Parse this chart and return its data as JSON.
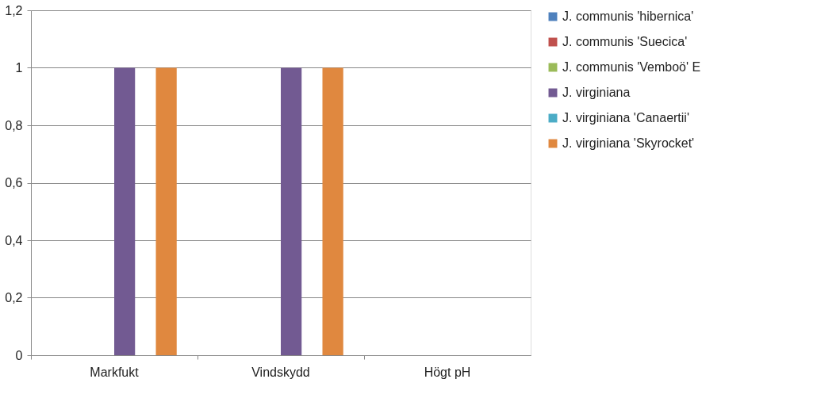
{
  "chart_data": {
    "type": "bar",
    "categories": [
      "Markfukt",
      "Vindskydd",
      "Högt pH"
    ],
    "series": [
      {
        "name": "J. communis 'hibernica'",
        "color": "#4f81bd",
        "values": [
          0,
          0,
          0
        ]
      },
      {
        "name": "J. communis 'Suecica'",
        "color": "#c0504d",
        "values": [
          0,
          0,
          0
        ]
      },
      {
        "name": "J. communis 'Vemboö' E",
        "color": "#9bbb59",
        "values": [
          0,
          0,
          0
        ]
      },
      {
        "name": "J. virginiana",
        "color": "#725a92",
        "values": [
          1,
          1,
          0
        ]
      },
      {
        "name": "J. virginiana 'Canaertii'",
        "color": "#4bacc6",
        "values": [
          0,
          0,
          0
        ]
      },
      {
        "name": "J. virginiana 'Skyrocket'",
        "color": "#e0883f",
        "values": [
          1,
          1,
          0
        ]
      }
    ],
    "ylim": [
      0,
      1.2
    ],
    "yticks": [
      0,
      {
        "value": 0.2,
        "label": "0,2"
      },
      {
        "value": 0.4,
        "label": "0,4"
      },
      {
        "value": 0.6,
        "label": "0,6"
      },
      {
        "value": 0.8,
        "label": "0,8"
      },
      1,
      {
        "value": 1.2,
        "label": "1,2"
      }
    ],
    "grid": "y",
    "legend": "right"
  }
}
